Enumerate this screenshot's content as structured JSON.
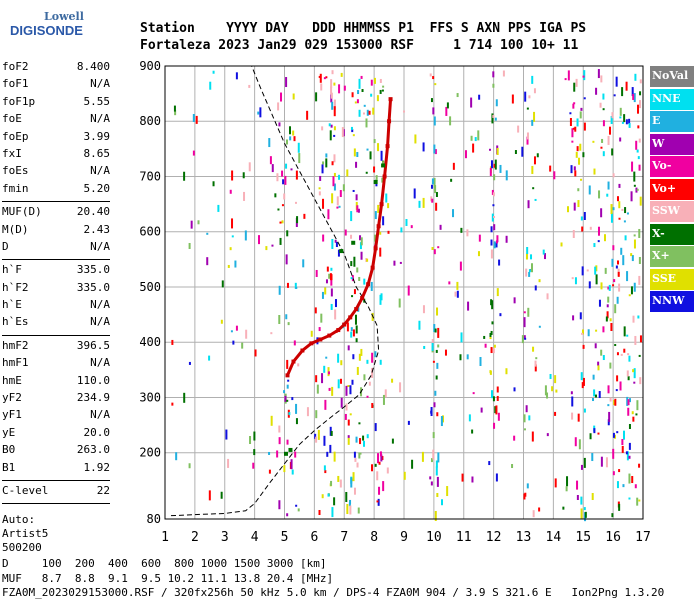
{
  "logo": {
    "line1": "Lowell",
    "line2": "DIGISONDE"
  },
  "header": {
    "line1": "Station    YYYY DAY   DDD HHMMSS P1  FFS S AXN PPS IGA PS",
    "line2": "Fortaleza 2023 Jan29 029 153000 RSF     1 714 100 10+ 11"
  },
  "params": {
    "group1": [
      {
        "name": "foF2",
        "value": "8.400"
      },
      {
        "name": "foF1",
        "value": "N/A"
      },
      {
        "name": "foF1p",
        "value": "5.55"
      },
      {
        "name": "foE",
        "value": "N/A"
      },
      {
        "name": "foEp",
        "value": "3.99"
      },
      {
        "name": "fxI",
        "value": "8.65"
      },
      {
        "name": "foEs",
        "value": "N/A"
      },
      {
        "name": "fmin",
        "value": "5.20"
      }
    ],
    "group2": [
      {
        "name": "MUF(D)",
        "value": "20.40"
      },
      {
        "name": "M(D)",
        "value": "2.43"
      },
      {
        "name": "D",
        "value": "N/A"
      }
    ],
    "group3": [
      {
        "name": "h`F",
        "value": "335.0"
      },
      {
        "name": "h`F2",
        "value": "335.0"
      },
      {
        "name": "h`E",
        "value": "N/A"
      },
      {
        "name": "h`Es",
        "value": "N/A"
      }
    ],
    "group4": [
      {
        "name": "hmF2",
        "value": "396.5"
      },
      {
        "name": "hmF1",
        "value": "N/A"
      },
      {
        "name": "hmE",
        "value": "110.0"
      },
      {
        "name": "yF2",
        "value": "234.9"
      },
      {
        "name": "yF1",
        "value": "N/A"
      },
      {
        "name": "yE",
        "value": "20.0"
      },
      {
        "name": "B0",
        "value": "263.0"
      },
      {
        "name": "B1",
        "value": "1.92"
      }
    ],
    "group5": [
      {
        "name": "C-level",
        "value": "22"
      }
    ],
    "autoscale": [
      "Auto:",
      "Artist5",
      "500200"
    ]
  },
  "legend": [
    {
      "label": "NoVal",
      "color": "#808080"
    },
    {
      "label": "NNE",
      "color": "#00e0f0"
    },
    {
      "label": "E",
      "color": "#20b0e0"
    },
    {
      "label": "W",
      "color": "#a000b0"
    },
    {
      "label": "Vo-",
      "color": "#f000a0"
    },
    {
      "label": "Vo+",
      "color": "#ff0000"
    },
    {
      "label": "SSW",
      "color": "#f8b0b8"
    },
    {
      "label": "X-",
      "color": "#007000"
    },
    {
      "label": "X+",
      "color": "#80c060"
    },
    {
      "label": "SSE",
      "color": "#e0e000"
    },
    {
      "label": "NNW",
      "color": "#1010e0"
    }
  ],
  "footer": {
    "dline": "D     100  200  400  600  800 1000 1500 3000 [km]",
    "mline": "MUF   8.7  8.8  9.1  9.5 10.2 11.1 13.8 20.4 [MHz]",
    "info": "FZA0M_2023029153000.RSF / 320fx256h 50 kHz 5.0 km / DPS-4 FZA0M 904 / 3.9 S 321.6 E   Ion2Png 1.3.20"
  },
  "chart_data": {
    "type": "scatter",
    "title": "",
    "xlabel": "",
    "ylabel": "",
    "xlim": [
      1,
      17
    ],
    "ylim": [
      80,
      900
    ],
    "x_ticks": [
      1,
      2,
      3,
      4,
      5,
      6,
      7,
      8,
      9,
      10,
      11,
      12,
      13,
      14,
      15,
      16,
      17
    ],
    "y_ticks": [
      80,
      200,
      300,
      400,
      500,
      600,
      700,
      800,
      900
    ],
    "grid": true,
    "legend_position": "right",
    "series": [
      {
        "name": "Vo+",
        "color": "#cc0000",
        "points": [
          [
            5.1,
            340
          ],
          [
            5.3,
            365
          ],
          [
            5.6,
            385
          ],
          [
            5.9,
            398
          ],
          [
            6.2,
            405
          ],
          [
            6.5,
            412
          ],
          [
            6.8,
            422
          ],
          [
            7.0,
            432
          ],
          [
            7.2,
            445
          ],
          [
            7.4,
            460
          ],
          [
            7.6,
            480
          ],
          [
            7.8,
            505
          ],
          [
            7.95,
            535
          ],
          [
            8.05,
            570
          ],
          [
            8.15,
            610
          ],
          [
            8.25,
            650
          ],
          [
            8.35,
            700
          ],
          [
            8.45,
            755
          ],
          [
            8.5,
            800
          ],
          [
            8.55,
            840
          ]
        ]
      },
      {
        "name": "X-",
        "color": "#007000",
        "points": [
          [
            5.05,
            198
          ],
          [
            5.2,
            205
          ],
          [
            6.9,
            565
          ],
          [
            7.3,
            580
          ],
          [
            8.05,
            690
          ],
          [
            8.3,
            720
          ]
        ]
      }
    ],
    "profile": {
      "name": "profile",
      "points": [
        [
          1.2,
          86
        ],
        [
          2.0,
          88
        ],
        [
          3.0,
          90
        ],
        [
          3.7,
          95
        ],
        [
          4.0,
          108
        ],
        [
          4.5,
          145
        ],
        [
          5.0,
          180
        ],
        [
          5.5,
          215
        ],
        [
          6.0,
          240
        ],
        [
          6.5,
          262
        ],
        [
          7.0,
          283
        ],
        [
          7.5,
          305
        ],
        [
          7.9,
          340
        ],
        [
          8.15,
          385
        ],
        [
          8.1,
          430
        ],
        [
          7.8,
          465
        ],
        [
          7.4,
          500
        ],
        [
          7.0,
          560
        ],
        [
          6.5,
          610
        ],
        [
          6.0,
          660
        ],
        [
          5.5,
          710
        ],
        [
          5.0,
          760
        ],
        [
          4.6,
          810
        ],
        [
          4.2,
          860
        ],
        [
          3.9,
          900
        ]
      ]
    }
  }
}
